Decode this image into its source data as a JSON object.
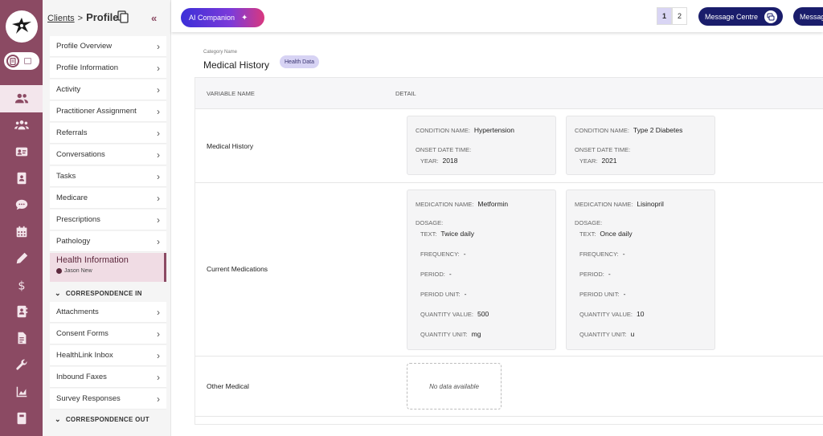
{
  "breadcrumb": {
    "parent": "Clients",
    "separator": ">",
    "current": "Profile"
  },
  "sidebar": {
    "items_top": [
      "Profile Overview",
      "Profile Information",
      "Activity",
      "Practitioner Assignment",
      "Referrals",
      "Conversations",
      "Tasks",
      "Medicare",
      "Prescriptions",
      "Pathology"
    ],
    "active": {
      "label": "Health Information",
      "user": "Jason New"
    },
    "group_in": "CORRESPONDENCE IN",
    "items_in": [
      "Attachments",
      "Consent Forms",
      "HealthLink Inbox",
      "Inbound Faxes",
      "Survey Responses"
    ],
    "group_out": "CORRESPONDENCE OUT"
  },
  "rail": {
    "icons": [
      "users-icon",
      "group-icon",
      "id-card-icon",
      "contact-book-icon",
      "chat-icon",
      "calendar-icon",
      "pen-icon",
      "dollar-icon",
      "address-book-icon",
      "document-icon",
      "wrench-icon",
      "chart-icon",
      "notebook-icon"
    ],
    "active_index": 0
  },
  "topbar": {
    "ai_label": "AI Companion",
    "pages": [
      "1",
      "2"
    ],
    "active_page": "1",
    "message_centre": "Message Centre",
    "message_2": "Messag"
  },
  "content": {
    "category_label": "Category Name",
    "category_title": "Medical History",
    "tag": "Health Data",
    "headers": {
      "variable": "VARIABLE NAME",
      "detail": "DETAIL"
    },
    "rows": {
      "medical_history": {
        "label": "Medical History",
        "cards": [
          {
            "condition_label": "CONDITION NAME:",
            "condition": "Hypertension",
            "onset_label": "ONSET DATE TIME:",
            "year_label": "YEAR:",
            "year": "2018"
          },
          {
            "condition_label": "CONDITION NAME:",
            "condition": "Type 2 Diabetes",
            "onset_label": "ONSET DATE TIME:",
            "year_label": "YEAR:",
            "year": "2021"
          }
        ]
      },
      "current_medications": {
        "label": "Current Medications",
        "cards": [
          {
            "med_label": "MEDICATION NAME:",
            "med": "Metformin",
            "dosage_label": "DOSAGE:",
            "text_label": "TEXT:",
            "text": "Twice daily",
            "freq_label": "FREQUENCY:",
            "freq": "-",
            "period_label": "PERIOD:",
            "period": "-",
            "unit_label": "PERIOD UNIT:",
            "unit": "-",
            "qv_label": "QUANTITY VALUE:",
            "qv": "500",
            "qu_label": "QUANTITY UNIT:",
            "qu": "mg"
          },
          {
            "med_label": "MEDICATION NAME:",
            "med": "Lisinopril",
            "dosage_label": "DOSAGE:",
            "text_label": "TEXT:",
            "text": "Once daily",
            "freq_label": "FREQUENCY:",
            "freq": "-",
            "period_label": "PERIOD:",
            "period": "-",
            "unit_label": "PERIOD UNIT:",
            "unit": "-",
            "qv_label": "QUANTITY VALUE:",
            "qv": "10",
            "qu_label": "QUANTITY UNIT:",
            "qu": "u"
          }
        ]
      },
      "other_medical": {
        "label": "Other Medical",
        "empty": "No data available"
      }
    }
  },
  "colors": {
    "rail": "#8b4a63",
    "navy": "#1a1d6b",
    "tag": "#d7d3f4"
  }
}
